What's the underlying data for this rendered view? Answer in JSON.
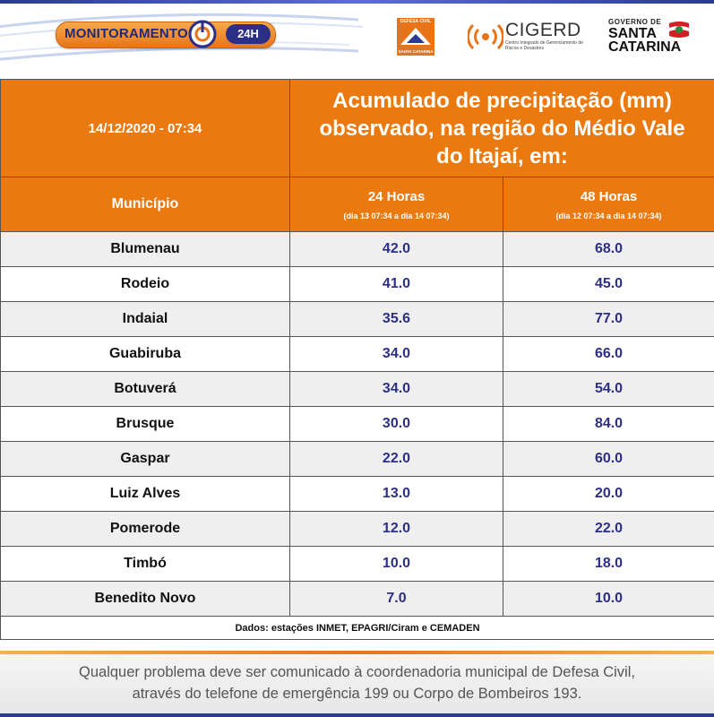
{
  "header": {
    "monitoring_label": "MONITORAMENTO",
    "badge_24h": "24H",
    "defesa_civil_top": "DEFESA CIVIL",
    "defesa_civil_bottom": "SANTA CATARINA",
    "cigerd_name": "CIGERD",
    "cigerd_subtitle": "Centro Integrado de Gerenciamento de Riscos e Desastres",
    "sc_gov": "GOVERNO DE",
    "sc_line1": "SANTA",
    "sc_line2": "CATARINA"
  },
  "table": {
    "datetime": "14/12/2020 - 07:34",
    "title_line1": "Acumulado de precipitação (mm)",
    "title_line2": "observado, na região do Médio Vale",
    "title_line3": "do Itajaí, em:",
    "col_municipio": "Município",
    "col_24h": "24 Horas",
    "col_24h_range": "(dia 13 07:34 a dia 14 07:34)",
    "col_48h": "48 Horas",
    "col_48h_range": "(dia 12 07:34 a dia 14 07:34)",
    "rows": [
      {
        "name": "Blumenau",
        "h24": "42.0",
        "h48": "68.0"
      },
      {
        "name": "Rodeio",
        "h24": "41.0",
        "h48": "45.0"
      },
      {
        "name": "Indaial",
        "h24": "35.6",
        "h48": "77.0"
      },
      {
        "name": "Guabiruba",
        "h24": "34.0",
        "h48": "66.0"
      },
      {
        "name": "Botuverá",
        "h24": "34.0",
        "h48": "54.0"
      },
      {
        "name": "Brusque",
        "h24": "30.0",
        "h48": "84.0"
      },
      {
        "name": "Gaspar",
        "h24": "22.0",
        "h48": "60.0"
      },
      {
        "name": "Luiz Alves",
        "h24": "13.0",
        "h48": "20.0"
      },
      {
        "name": "Pomerode",
        "h24": "12.0",
        "h48": "22.0"
      },
      {
        "name": "Timbó",
        "h24": "10.0",
        "h48": "18.0"
      },
      {
        "name": "Benedito Novo",
        "h24": "7.0",
        "h48": "10.0"
      }
    ],
    "source": "Dados: estações INMET, EPAGRI/Ciram e CEMADEN"
  },
  "notice": {
    "line1": "Qualquer problema deve ser comunicado à coordenadoria municipal de Defesa Civil,",
    "line2": "através do telefone de emergência 199 ou Corpo de Bombeiros 193."
  },
  "colors": {
    "orange": "#ea7a10",
    "navy": "#2d2f86",
    "row_alt": "#efefef"
  }
}
